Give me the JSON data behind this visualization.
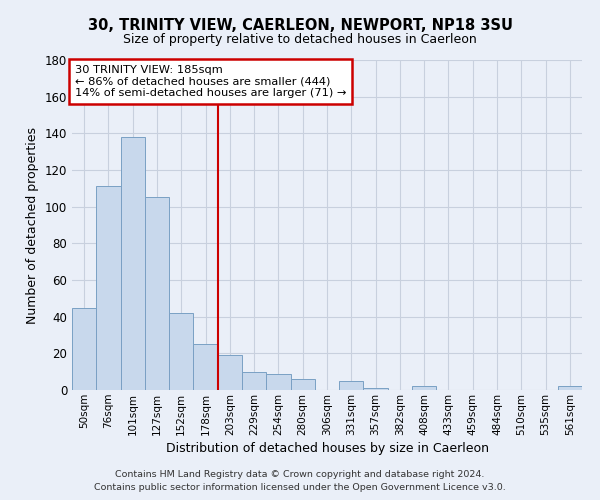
{
  "title": "30, TRINITY VIEW, CAERLEON, NEWPORT, NP18 3SU",
  "subtitle": "Size of property relative to detached houses in Caerleon",
  "xlabel": "Distribution of detached houses by size in Caerleon",
  "ylabel": "Number of detached properties",
  "bar_labels": [
    "50sqm",
    "76sqm",
    "101sqm",
    "127sqm",
    "152sqm",
    "178sqm",
    "203sqm",
    "229sqm",
    "254sqm",
    "280sqm",
    "306sqm",
    "331sqm",
    "357sqm",
    "382sqm",
    "408sqm",
    "433sqm",
    "459sqm",
    "484sqm",
    "510sqm",
    "535sqm",
    "561sqm"
  ],
  "bar_values": [
    45,
    111,
    138,
    105,
    42,
    25,
    19,
    10,
    9,
    6,
    0,
    5,
    1,
    0,
    2,
    0,
    0,
    0,
    0,
    0,
    2
  ],
  "bar_color": "#c8d8ec",
  "bar_edge_color": "#7aa0c4",
  "vline_x": 5.5,
  "vline_color": "#cc0000",
  "annotation_line1": "30 TRINITY VIEW: 185sqm",
  "annotation_line2": "← 86% of detached houses are smaller (444)",
  "annotation_line3": "14% of semi-detached houses are larger (71) →",
  "annotation_box_color": "#ffffff",
  "annotation_box_edge": "#cc0000",
  "ylim": [
    0,
    180
  ],
  "yticks": [
    0,
    20,
    40,
    60,
    80,
    100,
    120,
    140,
    160,
    180
  ],
  "grid_color": "#c8d0de",
  "background_color": "#eaeff8",
  "footer_line1": "Contains HM Land Registry data © Crown copyright and database right 2024.",
  "footer_line2": "Contains public sector information licensed under the Open Government Licence v3.0."
}
